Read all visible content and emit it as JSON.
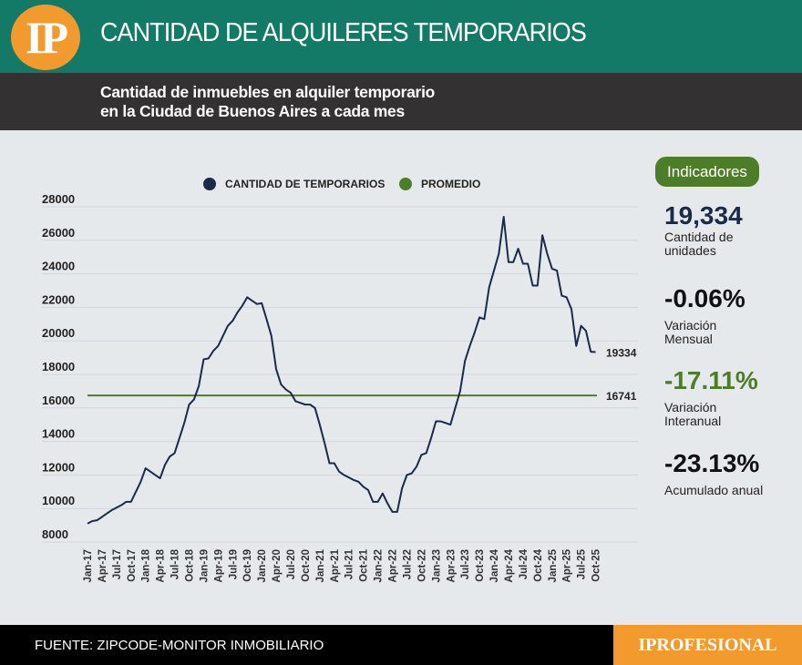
{
  "header": {
    "logo": "IP",
    "title": "CANTIDAD DE ALQUILERES TEMPORARIOS",
    "subtitle_line1": "Cantidad de inmuebles en alquiler temporario",
    "subtitle_line2": "en la Ciudad de Buenos Aires a cada mes"
  },
  "indicators": {
    "title": "Indicadores",
    "items": [
      {
        "value": "19,334",
        "label": "Cantidad de unidades",
        "color": "#1a2a4a"
      },
      {
        "value": "-0.06%",
        "label": "Variación Mensual",
        "color": "#111111"
      },
      {
        "value": "-17.11%",
        "label": "Variación Interanual",
        "color": "#4e7d2a"
      },
      {
        "value": "-23.13%",
        "label": "Acumulado anual",
        "color": "#111111"
      }
    ]
  },
  "footer": {
    "source": "FUENTE: ZIPCODE-MONITOR INMOBILIARIO",
    "brand": "IPROFESIONAL"
  },
  "chart_data": {
    "type": "line",
    "title": "",
    "legend": [
      {
        "name": "CANTIDAD DE TEMPORARIOS",
        "color": "#1a2a4a"
      },
      {
        "name": "PROMEDIO",
        "color": "#4e7d2a"
      }
    ],
    "legend_position": "top-center",
    "ylim": [
      8000,
      28000
    ],
    "yticks": [
      8000,
      10000,
      12000,
      14000,
      16000,
      18000,
      20000,
      22000,
      24000,
      26000,
      28000
    ],
    "xticks": [
      "Jan-17",
      "Apr-17",
      "Jul-17",
      "Oct-17",
      "Jan-18",
      "Apr-18",
      "Jul-18",
      "Oct-18",
      "Jan-19",
      "Apr-19",
      "Jul-19",
      "Oct-19",
      "Jan-20",
      "Apr-20",
      "Jul-20",
      "Oct-20",
      "Jan-21",
      "Apr-21",
      "Jul-21",
      "Oct-21",
      "Jan-22",
      "Apr-22",
      "Jul-22",
      "Oct-22",
      "Jan-23",
      "Apr-23",
      "Jul-23",
      "Oct-23",
      "Jan-24",
      "Apr-24",
      "Jul-24",
      "Oct-24",
      "Jan-25",
      "Apr-25",
      "Jul-25",
      "Oct-25"
    ],
    "grid": true,
    "series": [
      {
        "name": "CANTIDAD DE TEMPORARIOS",
        "start": "Jan-17",
        "values": [
          9100,
          9250,
          9300,
          9500,
          9700,
          9900,
          10050,
          10200,
          10400,
          10400,
          11000,
          11600,
          12400,
          12200,
          12000,
          11800,
          12600,
          13100,
          13300,
          14200,
          15100,
          16200,
          16500,
          17300,
          18900,
          18950,
          19400,
          19700,
          20300,
          20900,
          21200,
          21700,
          22100,
          22600,
          22400,
          22200,
          22250,
          21300,
          20300,
          18300,
          17400,
          17100,
          16900,
          16400,
          16300,
          16200,
          16200,
          16000,
          15000,
          13900,
          12700,
          12700,
          12200,
          12000,
          11850,
          11700,
          11600,
          11300,
          11100,
          10400,
          10400,
          10900,
          10300,
          9800,
          9800,
          11200,
          12000,
          12100,
          12500,
          13200,
          13300,
          14200,
          15200,
          15200,
          15100,
          15000,
          16000,
          17000,
          18800,
          19700,
          20500,
          21400,
          21300,
          23200,
          24200,
          25200,
          27400,
          24700,
          24700,
          25500,
          24600,
          24600,
          23300,
          23300,
          26300,
          25200,
          24300,
          24200,
          22700,
          22600,
          21900,
          19700,
          20900,
          20600,
          19350,
          19334
        ]
      },
      {
        "name": "PROMEDIO",
        "value": 16741
      }
    ],
    "annotations": [
      "19334",
      "16741"
    ]
  }
}
